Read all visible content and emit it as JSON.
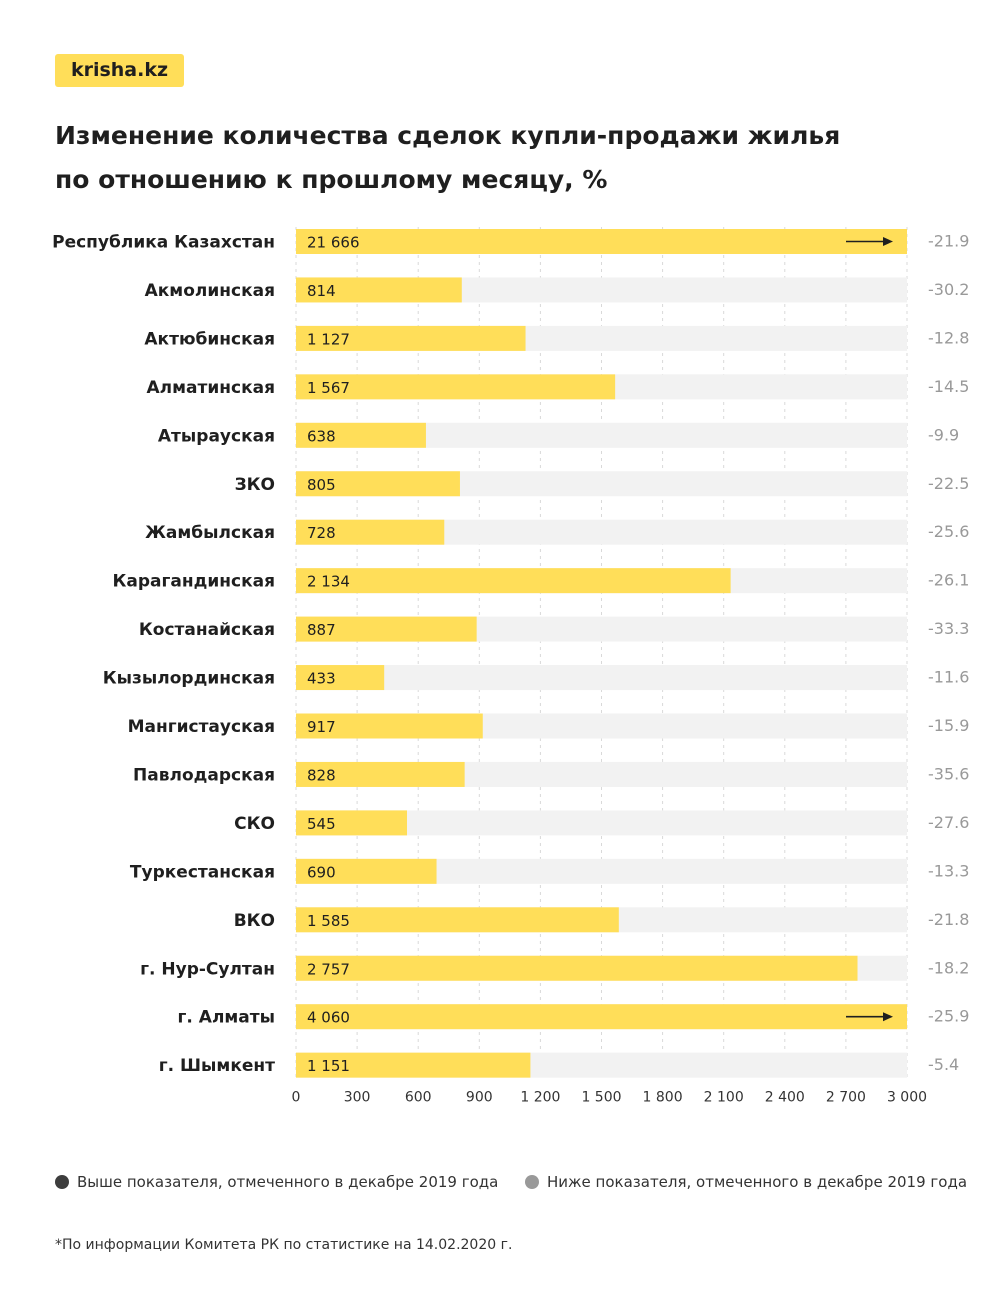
{
  "brand": {
    "logo_text": "krisha.kz"
  },
  "header": {
    "title_line1": "Изменение количества сделок купли-продажи жилья",
    "title_line2": "по отношению к прошлому месяцу, %"
  },
  "colors": {
    "bar": "#ffde59",
    "track": "#f2f2f2",
    "grid": "#d9d9d9",
    "above": "#3d3d3d",
    "below": "#999999"
  },
  "chart_data": {
    "type": "bar",
    "orientation": "horizontal",
    "title": "Изменение количества сделок купли-продажи жилья по отношению к прошлому месяцу, %",
    "categories": [
      "Республика Казахстан",
      "Акмолинская",
      "Актюбинская",
      "Алматинская",
      "Атырауская",
      "ЗКО",
      "Жамбылская",
      "Карагандинская",
      "Костанайская",
      "Кызылординская",
      "Мангистауская",
      "Павлодарская",
      "СКО",
      "Туркестанская",
      "ВКО",
      "г. Нур-Султан",
      "г. Алматы",
      "г. Шымкент"
    ],
    "values": [
      21666,
      814,
      1127,
      1567,
      638,
      805,
      728,
      2134,
      887,
      433,
      917,
      828,
      545,
      690,
      1585,
      2757,
      4060,
      1151
    ],
    "value_labels": [
      "21 666",
      "814",
      "1 127",
      "1 567",
      "638",
      "805",
      "728",
      "2 134",
      "887",
      "433",
      "917",
      "828",
      "545",
      "690",
      "1 585",
      "2 757",
      "4 060",
      "1 151"
    ],
    "change_pct": [
      "-21.9",
      "-30.2",
      "-12.8",
      "-14.5",
      "-9.9",
      "-22.5",
      "-25.6",
      "-26.1",
      "-33.3",
      "-11.6",
      "-15.9",
      "-35.6",
      "-27.6",
      "-13.3",
      "-21.8",
      "-18.2",
      "-25.9",
      "-5.4"
    ],
    "change_status": [
      "below",
      "below",
      "below",
      "below",
      "below",
      "below",
      "below",
      "below",
      "below",
      "below",
      "below",
      "below",
      "below",
      "below",
      "below",
      "below",
      "below",
      "below"
    ],
    "overflow": [
      true,
      false,
      false,
      false,
      false,
      false,
      false,
      false,
      false,
      false,
      false,
      false,
      false,
      false,
      false,
      false,
      true,
      false
    ],
    "xlim": [
      0,
      3000
    ],
    "xticks": [
      0,
      300,
      600,
      900,
      1200,
      1500,
      1800,
      2100,
      2400,
      2700,
      3000
    ],
    "xtick_labels": [
      "0",
      "300",
      "600",
      "900",
      "1 200",
      "1 500",
      "1 800",
      "2 100",
      "2 400",
      "2 700",
      "3 000"
    ],
    "grid": true
  },
  "legend": {
    "above_label": "Выше показателя, отмеченного в декабре 2019 года",
    "below_label": "Ниже показателя, отмеченного в декабре 2019 года"
  },
  "footnote": "*По информации Комитета РК по статистике на 14.02.2020 г."
}
